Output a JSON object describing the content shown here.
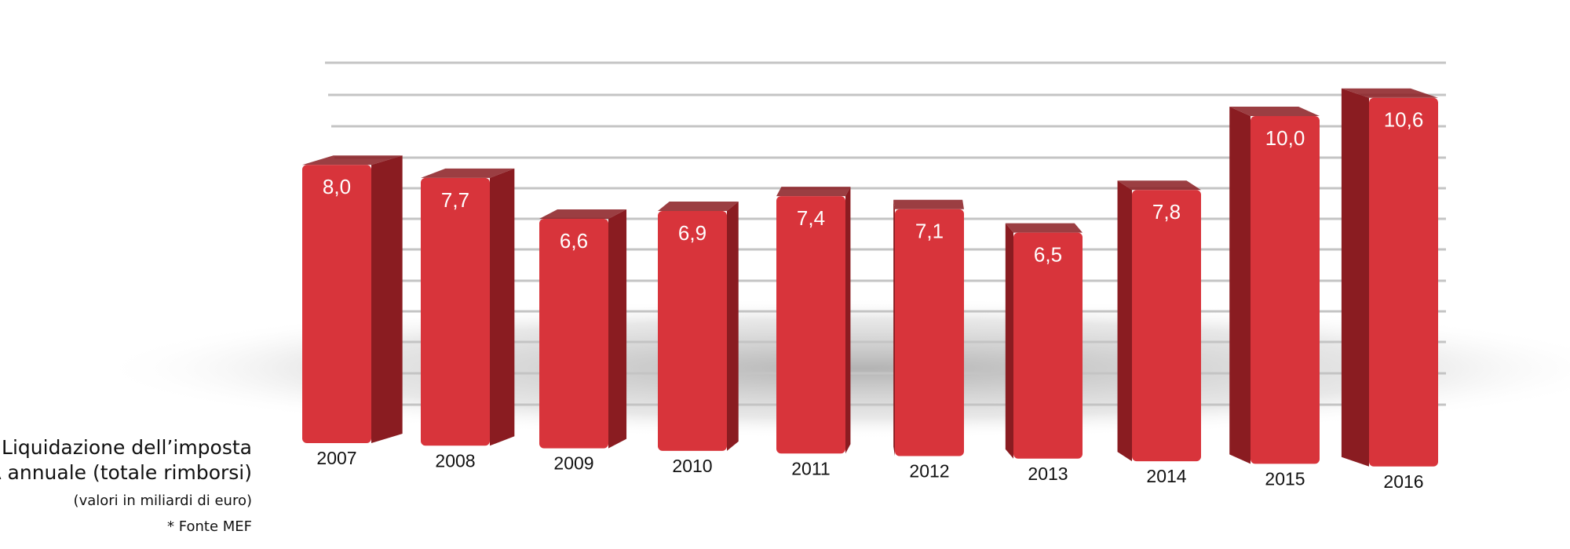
{
  "chart_data": {
    "type": "bar",
    "title_lines": [
      "Liquidazione dell’imposta",
      "IVA annuale (totale rimborsi)"
    ],
    "subtitle": "(valori in miliardi di euro)",
    "source": "* Fonte MEF",
    "categories": [
      "2007",
      "2008",
      "2009",
      "2010",
      "2011",
      "2012",
      "2013",
      "2014",
      "2015",
      "2016"
    ],
    "values": [
      8.0,
      7.7,
      6.6,
      6.9,
      7.4,
      7.1,
      6.5,
      7.8,
      10.0,
      10.6
    ],
    "value_labels": [
      "8,0",
      "7,7",
      "6,6",
      "6,9",
      "7,4",
      "7,1",
      "6,5",
      "7,8",
      "10,0",
      "10,6"
    ],
    "color": "#d8343b",
    "side_color": "#8a1c21"
  }
}
